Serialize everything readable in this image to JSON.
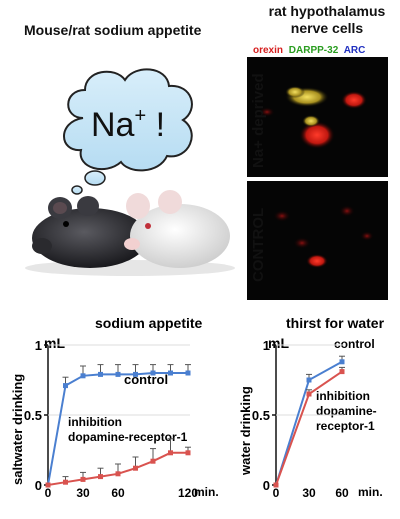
{
  "figure": {
    "left_title": "Mouse/rat sodium appetite",
    "right_title_line1": "rat hypothalamus",
    "right_title_line2": "nerve cells",
    "legend": [
      {
        "label": "orexin",
        "color": "#d62020"
      },
      {
        "label": "DARPP-32",
        "color": "#2a9d20"
      },
      {
        "label": "ARC",
        "color": "#2030c0"
      }
    ],
    "micro_label_top": "Na+ deprived",
    "micro_label_bottom": "CONTROL",
    "thought_text_main": "Na",
    "thought_text_sup": "+",
    "thought_text_tail": " !"
  },
  "chart_data": [
    {
      "type": "line",
      "title": "sodium appetite",
      "ylabel": "saltwater drinking",
      "unit_label": "mL",
      "x_suffix": "min.",
      "xlim": [
        0,
        120
      ],
      "ylim": [
        0,
        1
      ],
      "x_ticks": [
        "0",
        "30",
        "60",
        "120"
      ],
      "y_ticks": [
        "0",
        "0.5",
        "1"
      ],
      "series": [
        {
          "name": "control",
          "color": "#4a7fd0",
          "x": [
            0,
            15,
            30,
            45,
            60,
            75,
            90,
            105,
            120
          ],
          "y": [
            0,
            0.71,
            0.78,
            0.79,
            0.79,
            0.79,
            0.8,
            0.8,
            0.8
          ],
          "err": [
            0,
            0.06,
            0.07,
            0.07,
            0.07,
            0.07,
            0.06,
            0.06,
            0.06
          ]
        },
        {
          "name": "inhibition dopamine-receptor-1",
          "color": "#d9534f",
          "x": [
            0,
            15,
            30,
            45,
            60,
            75,
            90,
            105,
            120
          ],
          "y": [
            0,
            0.02,
            0.04,
            0.06,
            0.08,
            0.12,
            0.17,
            0.23,
            0.23
          ],
          "err": [
            0,
            0.04,
            0.05,
            0.06,
            0.07,
            0.08,
            0.09,
            0.1,
            0.04
          ]
        }
      ],
      "label_control": "control",
      "label_inhib_line1": "inhibition",
      "label_inhib_line2": "dopamine-receptor-1"
    },
    {
      "type": "line",
      "title": "thirst for water",
      "ylabel": "water drinking",
      "unit_label": "mL",
      "x_suffix": "min.",
      "xlim": [
        0,
        60
      ],
      "ylim": [
        0,
        1
      ],
      "x_ticks": [
        "0",
        "30",
        "60"
      ],
      "y_ticks": [
        "0",
        "0.5",
        "1"
      ],
      "series": [
        {
          "name": "control",
          "color": "#4a7fd0",
          "x": [
            0,
            30,
            60
          ],
          "y": [
            0,
            0.75,
            0.88
          ],
          "err": [
            0,
            0.04,
            0.04
          ]
        },
        {
          "name": "inhibition dopamine-receptor-1",
          "color": "#d9534f",
          "x": [
            0,
            30,
            60
          ],
          "y": [
            0,
            0.65,
            0.81
          ],
          "err": [
            0,
            0.03,
            0.03
          ]
        }
      ],
      "label_control": "control",
      "label_inhib_line1": "inhibition",
      "label_inhib_line2": "dopamine-",
      "label_inhib_line3": "receptor-1"
    }
  ]
}
